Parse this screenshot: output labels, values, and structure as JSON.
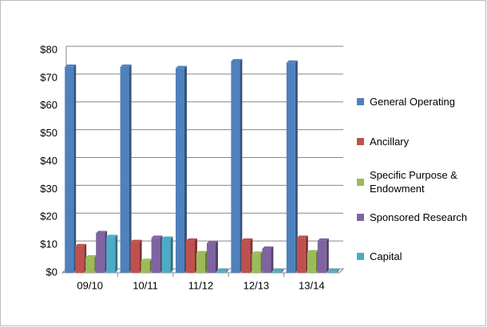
{
  "chart_data": {
    "type": "bar",
    "categories": [
      "09/10",
      "10/11",
      "11/12",
      "12/13",
      "13/14"
    ],
    "series": [
      {
        "name": "General Operating",
        "color": "#4f81bd",
        "values": [
          74,
          74,
          73.5,
          76,
          75.5
        ]
      },
      {
        "name": "Ancillary",
        "color": "#c0504d",
        "values": [
          9.5,
          11,
          11.5,
          11.5,
          12.5
        ]
      },
      {
        "name": "Specific Purpose & Endowment",
        "color": "#9bbb59",
        "values": [
          5.5,
          4.2,
          7,
          6.8,
          7.3
        ]
      },
      {
        "name": "Sponsored Research",
        "color": "#8064a2",
        "values": [
          14.2,
          12.5,
          10.6,
          8.6,
          11.5
        ]
      },
      {
        "name": "Capital",
        "color": "#4bacc6",
        "values": [
          12.8,
          12.2,
          0.5,
          0.5,
          0.5
        ]
      }
    ],
    "ylim": [
      0,
      80
    ],
    "yticks": [
      {
        "value": 0,
        "label": "$0"
      },
      {
        "value": 10,
        "label": "$10"
      },
      {
        "value": 20,
        "label": "$20"
      },
      {
        "value": 30,
        "label": "$30"
      },
      {
        "value": 40,
        "label": "$40"
      },
      {
        "value": 50,
        "label": "$50"
      },
      {
        "value": 60,
        "label": "$60"
      },
      {
        "value": 70,
        "label": "$70"
      },
      {
        "value": 80,
        "label": "$80"
      }
    ],
    "grid": true,
    "legend": "right"
  }
}
